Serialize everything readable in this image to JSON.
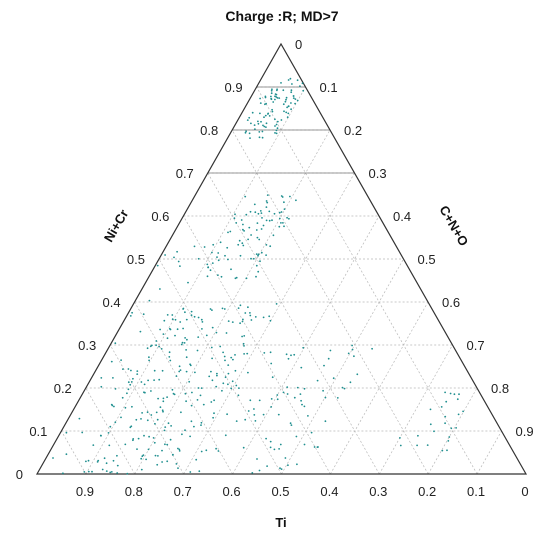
{
  "chart_data": {
    "type": "scatter",
    "subtype": "ternary",
    "title": "Charge :R; MD>7",
    "axes": {
      "left": {
        "label": "Ni+Cr",
        "ticks": [
          "0",
          "0.1",
          "0.2",
          "0.3",
          "0.4",
          "0.5",
          "0.6",
          "0.7",
          "0.8",
          "0.9"
        ]
      },
      "right": {
        "label": "C+N+O",
        "ticks": [
          "0",
          "0.1",
          "0.2",
          "0.3",
          "0.4",
          "0.5",
          "0.6",
          "0.7",
          "0.8",
          "0.9"
        ]
      },
      "bottom": {
        "label": "Ti",
        "ticks": [
          "0.9",
          "0.8",
          "0.7",
          "0.6",
          "0.5",
          "0.4",
          "0.3",
          "0.2",
          "0.1",
          "0"
        ]
      }
    },
    "grid": true,
    "point_color": "#1f8f8f",
    "series": [
      {
        "clusters": [
          {
            "ni_cr": [
              0.78,
              0.92
            ],
            "c_n_o": [
              0.02,
              0.1
            ],
            "n": 90
          },
          {
            "ni_cr": [
              0.45,
              0.65
            ],
            "c_n_o": [
              0.1,
              0.22
            ],
            "n": 90
          },
          {
            "ni_cr": [
              0.0,
              0.4
            ],
            "c_n_o": [
              0.08,
              0.3
            ],
            "n": 230
          },
          {
            "ni_cr": [
              0.0,
              0.3
            ],
            "c_n_o": [
              0.3,
              0.55
            ],
            "n": 90
          },
          {
            "ni_cr": [
              0.05,
              0.2
            ],
            "c_n_o": [
              0.7,
              0.82
            ],
            "n": 25
          },
          {
            "ni_cr": [
              0.0,
              0.55
            ],
            "c_n_o": [
              0.0,
              0.1
            ],
            "n": 40
          }
        ]
      }
    ]
  }
}
